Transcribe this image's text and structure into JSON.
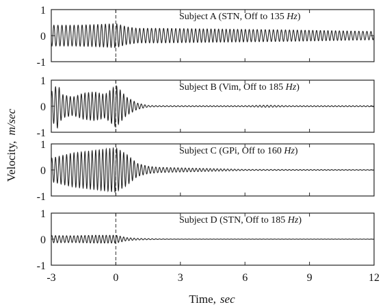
{
  "figure": {
    "ylabel_main": "Velocity,",
    "ylabel_unit": "m/sec",
    "xlabel_main": "Time,",
    "xlabel_unit": "sec"
  },
  "chart_data": [
    {
      "type": "line",
      "title_pre": "Subject A (STN,  Off to 135 ",
      "title_unit": "Hz",
      "title_post": ")",
      "xlim": [
        -3,
        12
      ],
      "ylim": [
        -1,
        1
      ],
      "y_ticks": [
        "1",
        "0",
        "-1"
      ],
      "onset_x": 0,
      "series": [
        {
          "x": [
            -3,
            -2,
            -1,
            0,
            0.5,
            1,
            2,
            3,
            4,
            6,
            8,
            10,
            12
          ],
          "amplitude": [
            0.4,
            0.4,
            0.42,
            0.46,
            0.34,
            0.28,
            0.28,
            0.27,
            0.26,
            0.24,
            0.22,
            0.19,
            0.16
          ],
          "frequency_hz": 5.5
        }
      ]
    },
    {
      "type": "line",
      "title_pre": "Subject B (Vim,  Off to 185 ",
      "title_unit": "Hz",
      "title_post": ")",
      "xlim": [
        -3,
        12
      ],
      "ylim": [
        -1,
        1
      ],
      "y_ticks": [
        "1",
        "0",
        "-1"
      ],
      "onset_x": 0,
      "series": [
        {
          "x": [
            -3,
            -2.7,
            -2.5,
            -2,
            -1.5,
            -1,
            -0.5,
            0,
            0.5,
            1,
            1.5,
            2,
            3,
            6,
            7,
            8,
            12
          ],
          "amplitude": [
            0.55,
            0.85,
            0.45,
            0.35,
            0.5,
            0.55,
            0.45,
            0.8,
            0.35,
            0.12,
            0.03,
            0.02,
            0.02,
            0.02,
            0.04,
            0.02,
            0.02
          ],
          "frequency_hz": 6
        }
      ]
    },
    {
      "type": "line",
      "title_pre": "Subject C (GPi,  Off to 160 ",
      "title_unit": "Hz",
      "title_post": ")",
      "xlim": [
        -3,
        12
      ],
      "ylim": [
        -1,
        1
      ],
      "y_ticks": [
        "1",
        "0",
        "-1"
      ],
      "onset_x": 0,
      "series": [
        {
          "x": [
            -3,
            -2,
            -1,
            0,
            0.5,
            1,
            1.5,
            2,
            3,
            4,
            5,
            6,
            12
          ],
          "amplitude": [
            0.45,
            0.65,
            0.75,
            0.85,
            0.6,
            0.25,
            0.14,
            0.1,
            0.08,
            0.06,
            0.04,
            0.02,
            0.01
          ],
          "frequency_hz": 6
        }
      ]
    },
    {
      "type": "line",
      "title_pre": "Subject D (STN,  Off to 185 ",
      "title_unit": "Hz",
      "title_post": ")",
      "xlim": [
        -3,
        12
      ],
      "ylim": [
        -1,
        1
      ],
      "y_ticks": [
        "1",
        "0",
        "-1"
      ],
      "onset_x": 0,
      "x_ticks": [
        "-3",
        "0",
        "3",
        "6",
        "9",
        "12"
      ],
      "series": [
        {
          "x": [
            -3,
            -2,
            -1,
            0,
            0.5,
            1,
            2,
            3,
            12
          ],
          "amplitude": [
            0.14,
            0.13,
            0.15,
            0.15,
            0.06,
            0.03,
            0.01,
            0.005,
            0.005
          ],
          "frequency_hz": 6
        }
      ]
    }
  ]
}
